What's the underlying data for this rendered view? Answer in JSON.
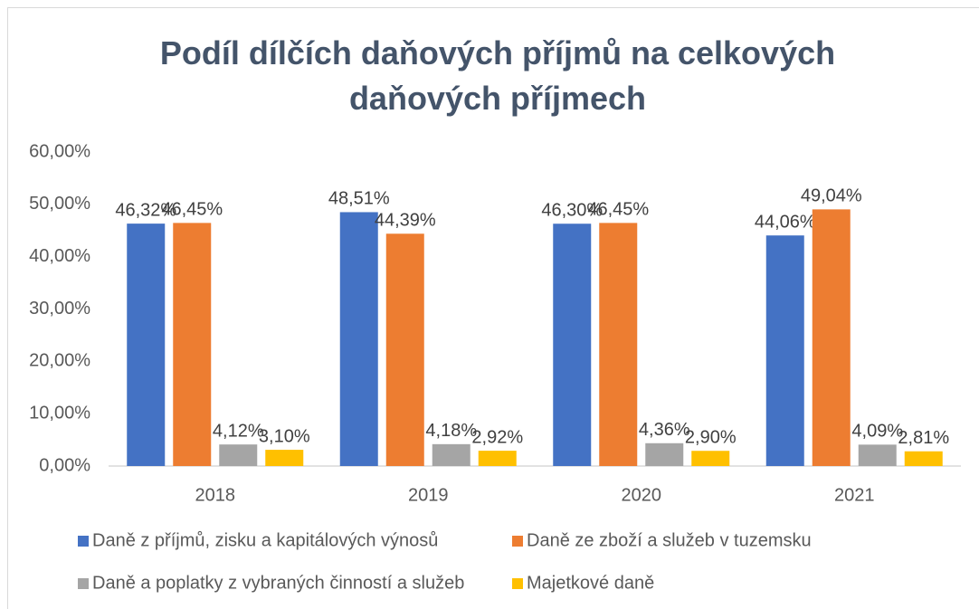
{
  "chart_data": {
    "type": "bar",
    "title": "Podíl dílčích daňových příjmů na celkových daňových příjmech",
    "categories": [
      "2018",
      "2019",
      "2020",
      "2021"
    ],
    "series": [
      {
        "name": "Daně z příjmů, zisku a kapitálových výnosů",
        "color": "#4472c4",
        "values": [
          46.32,
          48.51,
          46.3,
          44.06
        ],
        "value_labels": [
          "46,32%",
          "48,51%",
          "46,30%",
          "44,06%"
        ]
      },
      {
        "name": "Daně ze zboží a služeb v tuzemsku",
        "color": "#ed7d31",
        "values": [
          46.45,
          44.39,
          46.45,
          49.04
        ],
        "value_labels": [
          "46,45%",
          "44,39%",
          "46,45%",
          "49,04%"
        ]
      },
      {
        "name": "Daně a poplatky z vybraných činností a služeb",
        "color": "#a5a5a5",
        "values": [
          4.12,
          4.18,
          4.36,
          4.09
        ],
        "value_labels": [
          "4,12%",
          "4,18%",
          "4,36%",
          "4,09%"
        ]
      },
      {
        "name": "Majetkové daně",
        "color": "#ffc000",
        "values": [
          3.1,
          2.92,
          2.9,
          2.81
        ],
        "value_labels": [
          "3,10%",
          "2,92%",
          "2,90%",
          "2,81%"
        ]
      }
    ],
    "ylim": [
      0,
      60
    ],
    "yticks": [
      {
        "value": 0,
        "label": "0,00%"
      },
      {
        "value": 10,
        "label": "10,00%"
      },
      {
        "value": 20,
        "label": "20,00%"
      },
      {
        "value": 30,
        "label": "30,00%"
      },
      {
        "value": 40,
        "label": "40,00%"
      },
      {
        "value": 50,
        "label": "50,00%"
      },
      {
        "value": 60,
        "label": "60,00%"
      }
    ],
    "grid": false,
    "legend": "bottom"
  }
}
